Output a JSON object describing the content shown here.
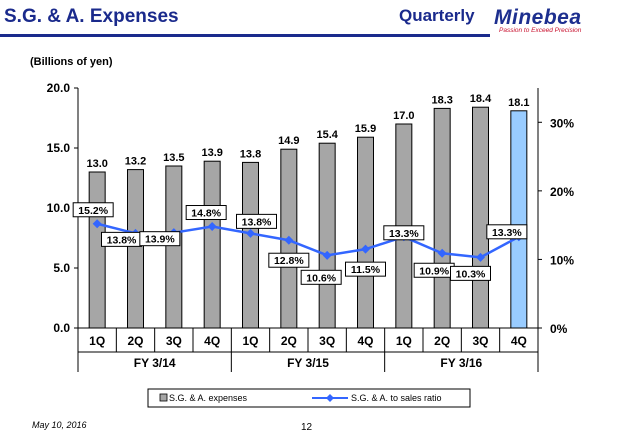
{
  "header": {
    "title": "S.G. & A. Expenses",
    "period": "Quarterly",
    "logo": "Minebea",
    "tagline": "Passion to Exceed Precision"
  },
  "unit_label": "(Billions of yen)",
  "footer": {
    "date": "May 10, 2016",
    "page": "12"
  },
  "colors": {
    "title": "#1a2a8c",
    "bar": "#a6a6a6",
    "bar_highlight": "#99ccff",
    "line": "#3366ff",
    "tagline": "#c8102e"
  },
  "chart_data": {
    "type": "bar",
    "categories": [
      "1Q",
      "2Q",
      "3Q",
      "4Q",
      "1Q",
      "2Q",
      "3Q",
      "4Q",
      "1Q",
      "2Q",
      "3Q",
      "4Q"
    ],
    "groups": [
      {
        "label": "FY 3/14",
        "count": 4
      },
      {
        "label": "FY 3/15",
        "count": 4
      },
      {
        "label": "FY 3/16",
        "count": 4
      }
    ],
    "series": [
      {
        "name": "S.G. & A. expenses",
        "type": "bar",
        "axis": "left",
        "values": [
          13.0,
          13.2,
          13.5,
          13.9,
          13.8,
          14.9,
          15.4,
          15.9,
          17.0,
          18.3,
          18.4,
          18.1
        ],
        "labels": [
          "13.0",
          "13.2",
          "13.5",
          "13.9",
          "13.8",
          "14.9",
          "15.4",
          "15.9",
          "17.0",
          "18.3",
          "18.4",
          "18.1"
        ],
        "highlight_index": 11
      },
      {
        "name": "S.G. & A. to sales ratio",
        "type": "line",
        "axis": "right",
        "values": [
          15.2,
          13.8,
          13.9,
          14.8,
          13.8,
          12.8,
          10.6,
          11.5,
          13.3,
          10.9,
          10.3,
          13.3
        ],
        "labels": [
          "15.2%",
          "13.8%",
          "13.9%",
          "14.8%",
          "13.8%",
          "12.8%",
          "10.6%",
          "11.5%",
          "13.3%",
          "10.9%",
          "10.3%",
          "13.3%"
        ]
      }
    ],
    "y_left": {
      "min": 0,
      "max": 20,
      "ticks": [
        "0.0",
        "5.0",
        "10.0",
        "15.0",
        "20.0"
      ],
      "tick_values": [
        0,
        5,
        10,
        15,
        20
      ]
    },
    "y_right": {
      "min": 0,
      "max": 35,
      "ticks": [
        "0%",
        "10%",
        "20%",
        "30%"
      ],
      "tick_values": [
        0,
        10,
        20,
        30
      ]
    },
    "grid": false,
    "legend_position": "bottom"
  }
}
